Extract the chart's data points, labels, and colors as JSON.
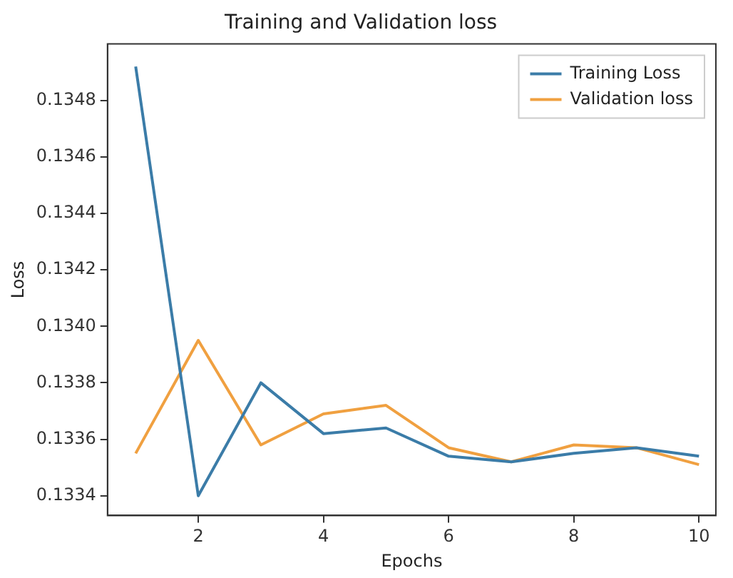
{
  "chart_data": {
    "type": "line",
    "title": "Training and Validation loss",
    "xlabel": "Epochs",
    "ylabel": "Loss",
    "x": [
      1,
      2,
      3,
      4,
      5,
      6,
      7,
      8,
      9,
      10
    ],
    "series": [
      {
        "name": "Training Loss",
        "color": "#3b7ca8",
        "values": [
          0.13492,
          0.1334,
          0.1338,
          0.13362,
          0.13364,
          0.13354,
          0.13352,
          0.13355,
          0.13357,
          0.13354
        ]
      },
      {
        "name": "Validation loss",
        "color": "#f0a040",
        "values": [
          0.13355,
          0.13395,
          0.13358,
          0.13369,
          0.13372,
          0.13357,
          0.13352,
          0.13358,
          0.13357,
          0.13351
        ]
      }
    ],
    "xlim": [
      0.55,
      10.27
    ],
    "xticks": [
      2,
      4,
      6,
      8,
      10
    ],
    "ylim": [
      0.13333,
      0.135
    ],
    "yticks": [
      0.1334,
      0.1336,
      0.1338,
      {
        "value": 0.134,
        "label": "0.1340"
      },
      0.1342,
      0.1344,
      0.1346,
      0.1348
    ],
    "grid": false,
    "legend": "top right",
    "marker": "none",
    "line_style": "solid"
  }
}
